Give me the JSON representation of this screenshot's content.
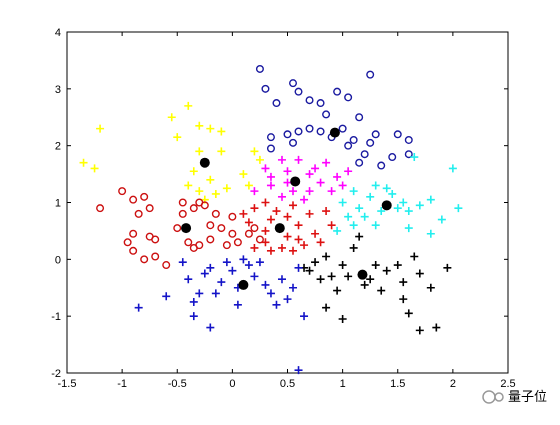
{
  "chart_data": {
    "type": "scatter",
    "xlim": [
      -1.5,
      2.5
    ],
    "ylim": [
      -2,
      4
    ],
    "xticks": [
      -1.5,
      -1,
      -0.5,
      0,
      0.5,
      1,
      1.5,
      2,
      2.5
    ],
    "yticks": [
      -2,
      -1,
      0,
      1,
      2,
      3,
      4
    ],
    "watermark": "量子位",
    "series": [
      {
        "color": "#ffff00",
        "marker": "plus",
        "x": [
          -1.2,
          -1.35,
          -1.25,
          -0.5,
          -0.55,
          -0.4,
          -0.3,
          -0.2,
          -0.1,
          -0.35,
          -0.4,
          -0.3,
          -0.2,
          -0.15,
          -0.05,
          -0.25,
          0.1,
          0.2,
          0.25,
          0.15,
          -0.1,
          -0.3
        ],
        "y": [
          2.3,
          1.7,
          1.6,
          2.15,
          2.5,
          2.7,
          2.35,
          2.3,
          2.25,
          1.55,
          1.3,
          1.2,
          1.4,
          1.15,
          1.25,
          1.05,
          1.5,
          1.9,
          1.75,
          1.3,
          1.9,
          1.9
        ]
      },
      {
        "color": "#cc1010",
        "marker": "circle",
        "x": [
          -1,
          -1.2,
          -0.9,
          -0.85,
          -0.8,
          -0.75,
          -0.7,
          -0.75,
          -0.9,
          -0.95,
          -0.9,
          -0.8,
          -0.7,
          -0.6,
          -0.5,
          -0.45,
          -0.45,
          -0.35,
          -0.3,
          -0.25,
          -0.4,
          -0.35,
          -0.3,
          -0.2,
          -0.2,
          -0.15,
          -0.1,
          0,
          -0.05,
          0.05,
          0,
          0.15,
          0.2,
          0.25
        ],
        "y": [
          1.2,
          0.9,
          1.05,
          0.8,
          1.1,
          0.9,
          0.35,
          0.4,
          0.45,
          0.3,
          0.15,
          0,
          0.05,
          -0.1,
          0.55,
          0.8,
          1.0,
          0.9,
          1.0,
          0.95,
          0.3,
          0.2,
          0.25,
          0.35,
          0.6,
          0.8,
          0.55,
          0.45,
          0.25,
          0.3,
          0.75,
          0.45,
          0.55,
          0.35
        ]
      },
      {
        "color": "#dd1111",
        "marker": "plus",
        "x": [
          0.1,
          0.2,
          0.3,
          0.35,
          0.4,
          0.5,
          0.55,
          0.6,
          0.7,
          0.75,
          0.8,
          0.65,
          0.5,
          0.3,
          0.3,
          0.35,
          0.45,
          0.55,
          0.6,
          0.85,
          0.9,
          0.2,
          0.15
        ],
        "y": [
          0.8,
          0.9,
          1.0,
          0.7,
          0.85,
          0.75,
          0.95,
          0.6,
          0.8,
          0.45,
          0.3,
          0.25,
          0.4,
          0.3,
          0.5,
          0.15,
          0.2,
          0.15,
          0.35,
          0.85,
          0.6,
          0.2,
          0.65
        ]
      },
      {
        "color": "#ff00ff",
        "marker": "plus",
        "x": [
          0.2,
          0.3,
          0.35,
          0.45,
          0.5,
          0.55,
          0.6,
          0.7,
          0.75,
          0.8,
          0.85,
          0.9,
          0.95,
          1.0,
          0.45,
          0.65,
          0.35,
          1.05,
          0.7,
          0.5
        ],
        "y": [
          1.2,
          1.6,
          1.45,
          1.75,
          1.55,
          1.2,
          1.75,
          1.5,
          1.6,
          1.35,
          1.7,
          1.2,
          1.45,
          1.3,
          1.1,
          1.05,
          1.3,
          1.55,
          1.2,
          1.35
        ]
      },
      {
        "color": "#1a1aa0",
        "marker": "circle",
        "x": [
          0.25,
          0.3,
          0.4,
          0.55,
          0.6,
          0.7,
          0.8,
          0.85,
          0.95,
          1.05,
          1.15,
          1.25,
          0.35,
          0.35,
          0.5,
          0.55,
          0.6,
          0.7,
          0.8,
          0.9,
          1.0,
          1.05,
          1.1,
          1.15,
          1.2,
          1.25,
          1.3,
          1.35,
          1.45,
          1.6,
          1.6,
          1.5
        ],
        "y": [
          3.35,
          3.0,
          2.75,
          3.1,
          2.95,
          2.8,
          2.75,
          2.55,
          2.95,
          2.85,
          2.5,
          3.25,
          2.15,
          1.95,
          2.2,
          2.05,
          2.25,
          2.3,
          2.25,
          2.15,
          2.3,
          2.0,
          2.1,
          1.7,
          1.85,
          2.05,
          2.2,
          1.65,
          1.8,
          2.1,
          1.85,
          2.2
        ]
      },
      {
        "color": "#22eeee",
        "marker": "plus",
        "x": [
          1.0,
          1.05,
          1.1,
          1.15,
          1.2,
          1.25,
          1.3,
          1.35,
          1.4,
          1.45,
          1.5,
          1.55,
          1.6,
          1.6,
          1.7,
          1.8,
          1.9,
          2.0,
          2.05,
          1.8,
          1.65,
          1.3,
          1.1,
          0.95
        ],
        "y": [
          1.0,
          0.75,
          0.6,
          0.9,
          0.75,
          1.1,
          1.3,
          0.85,
          1.25,
          1.15,
          0.9,
          1.0,
          0.85,
          0.55,
          0.95,
          0.45,
          0.7,
          1.6,
          0.9,
          1.05,
          1.8,
          0.6,
          1.2,
          0.5
        ]
      },
      {
        "color": "#000000",
        "marker": "plus",
        "x": [
          0.65,
          0.7,
          0.75,
          0.8,
          0.85,
          0.9,
          0.95,
          1.0,
          1.05,
          1.1,
          1.15,
          1.2,
          1.25,
          1.3,
          1.35,
          1.4,
          1.5,
          1.55,
          1.65,
          1.7,
          1.8,
          1.95,
          1.6,
          1.7,
          1.85,
          1.0,
          0.85,
          1.55
        ],
        "y": [
          -0.15,
          -0.2,
          -0.05,
          -0.35,
          0.05,
          -0.3,
          -0.55,
          -0.1,
          -0.3,
          0.2,
          0.4,
          -0.45,
          -0.35,
          -0.1,
          -0.55,
          -0.2,
          -0.1,
          -0.4,
          0.05,
          -0.25,
          -0.5,
          -0.15,
          -0.95,
          -1.25,
          -1.2,
          -1.05,
          -0.85,
          -0.7
        ]
      },
      {
        "color": "#1414c8",
        "marker": "plus",
        "x": [
          -0.85,
          -0.6,
          -0.4,
          -0.35,
          -0.3,
          -0.25,
          -0.2,
          -0.15,
          -0.1,
          -0.05,
          0,
          0.05,
          0.1,
          0.15,
          0.2,
          0.25,
          0.3,
          0.35,
          0.4,
          0.45,
          0.5,
          0.55,
          0.6,
          0.65,
          -0.2,
          -0.35,
          0.05,
          0.6,
          -0.45
        ],
        "y": [
          -0.85,
          -0.65,
          -0.35,
          -0.75,
          -0.6,
          -0.25,
          -0.15,
          -0.6,
          -0.4,
          -0.05,
          -0.2,
          -0.5,
          0,
          -0.1,
          -0.3,
          -0.05,
          -0.45,
          -0.6,
          -0.8,
          -0.35,
          -0.7,
          -0.5,
          -0.15,
          -1.0,
          -1.2,
          -1.0,
          -0.8,
          -1.95,
          -0.05
        ]
      },
      {
        "color": "#000000",
        "marker": "dot",
        "x": [
          -0.25,
          -0.42,
          0.43,
          0.57,
          0.93,
          1.4,
          1.18,
          0.1
        ],
        "y": [
          1.7,
          0.55,
          0.55,
          1.37,
          2.23,
          0.95,
          -0.27,
          -0.45
        ]
      }
    ]
  }
}
